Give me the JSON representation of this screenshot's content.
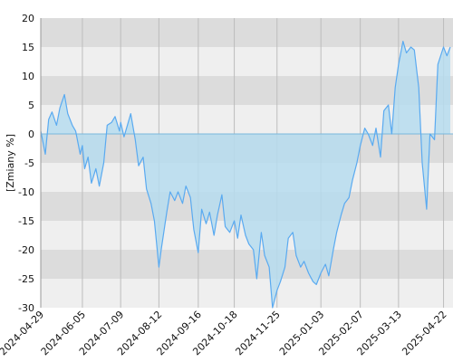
{
  "chart_data": {
    "type": "area",
    "ylabel": "[Zmiany %]",
    "ylim": [
      -30,
      20
    ],
    "y_ticks": [
      "20",
      "15",
      "10",
      "5",
      "0",
      "-5",
      "-10",
      "-15",
      "-20",
      "-25",
      "-30"
    ],
    "x_ticks": [
      "2024-04-29",
      "2024-06-05",
      "2024-07-09",
      "2024-08-12",
      "2024-09-16",
      "2024-10-18",
      "2024-11-25",
      "2025-01-03",
      "2025-02-07",
      "2025-03-13",
      "2025-04-22"
    ],
    "grid": true,
    "colors": {
      "line": "#5aaaf0",
      "fill": "#b6dcef",
      "band_dark": "#dcdcdc",
      "band_light": "#efefef",
      "zero_line": "#7ab8dc"
    },
    "series": [
      {
        "x": [
          "2024-04-29",
          "2024-05-03",
          "2024-05-06",
          "2024-05-09",
          "2024-05-13",
          "2024-05-16",
          "2024-05-20",
          "2024-05-23",
          "2024-05-27",
          "2024-05-30",
          "2024-06-03",
          "2024-06-05",
          "2024-06-07",
          "2024-06-10",
          "2024-06-13",
          "2024-06-17",
          "2024-06-20",
          "2024-06-24",
          "2024-06-27",
          "2024-07-01",
          "2024-07-04",
          "2024-07-08",
          "2024-07-09",
          "2024-07-12",
          "2024-07-15",
          "2024-07-18",
          "2024-07-22",
          "2024-07-25",
          "2024-07-29",
          "2024-08-01",
          "2024-08-05",
          "2024-08-08",
          "2024-08-12",
          "2024-08-14",
          "2024-08-19",
          "2024-08-22",
          "2024-08-26",
          "2024-08-29",
          "2024-09-02",
          "2024-09-05",
          "2024-09-09",
          "2024-09-12",
          "2024-09-16",
          "2024-09-19",
          "2024-09-23",
          "2024-09-26",
          "2024-09-30",
          "2024-10-03",
          "2024-10-07",
          "2024-10-10",
          "2024-10-14",
          "2024-10-18",
          "2024-10-21",
          "2024-10-24",
          "2024-10-28",
          "2024-10-31",
          "2024-11-04",
          "2024-11-07",
          "2024-11-11",
          "2024-11-14",
          "2024-11-18",
          "2024-11-21",
          "2024-11-25",
          "2024-11-28",
          "2024-12-02",
          "2024-12-05",
          "2024-12-09",
          "2024-12-12",
          "2024-12-16",
          "2024-12-19",
          "2024-12-23",
          "2024-12-27",
          "2024-12-30",
          "2025-01-03",
          "2025-01-07",
          "2025-01-10",
          "2025-01-14",
          "2025-01-17",
          "2025-01-21",
          "2025-01-24",
          "2025-01-28",
          "2025-01-31",
          "2025-02-04",
          "2025-02-07",
          "2025-02-11",
          "2025-02-14",
          "2025-02-18",
          "2025-02-21",
          "2025-02-25",
          "2025-02-28",
          "2025-03-04",
          "2025-03-07",
          "2025-03-10",
          "2025-03-13",
          "2025-03-17",
          "2025-03-20",
          "2025-03-24",
          "2025-03-27",
          "2025-03-31",
          "2025-04-03",
          "2025-04-07",
          "2025-04-10",
          "2025-04-14",
          "2025-04-17",
          "2025-04-22",
          "2025-04-25",
          "2025-04-28"
        ],
        "values": [
          0.5,
          -3.5,
          2.5,
          3.8,
          1.5,
          4.5,
          6.8,
          3.5,
          1.5,
          0.5,
          -3.5,
          -2,
          -6,
          -4,
          -8.5,
          -6,
          -9,
          -5,
          1.5,
          2,
          3,
          0.5,
          2,
          -0.5,
          1.5,
          3.5,
          -1,
          -5.5,
          -4,
          -9.5,
          -12,
          -15,
          -23,
          -20,
          -13.5,
          -10,
          -11.5,
          -10,
          -12,
          -9,
          -11,
          -16.5,
          -20.5,
          -13,
          -15.5,
          -13.5,
          -17.5,
          -14,
          -10.5,
          -16,
          -17,
          -15,
          -18,
          -14,
          -17.5,
          -19,
          -20,
          -25,
          -17,
          -21,
          -23,
          -30,
          -27,
          -25.5,
          -23,
          -18,
          -17,
          -21,
          -23,
          -22,
          -24,
          -25.5,
          -26,
          -24,
          -22.5,
          -24.5,
          -20,
          -17,
          -14,
          -12,
          -11,
          -8,
          -5,
          -2,
          1,
          0,
          -2,
          1,
          -4,
          4,
          5,
          0,
          8,
          12,
          16,
          14,
          15,
          14.5,
          8,
          -5,
          -13,
          0,
          -1,
          12,
          15,
          13.5,
          15
        ]
      }
    ]
  }
}
